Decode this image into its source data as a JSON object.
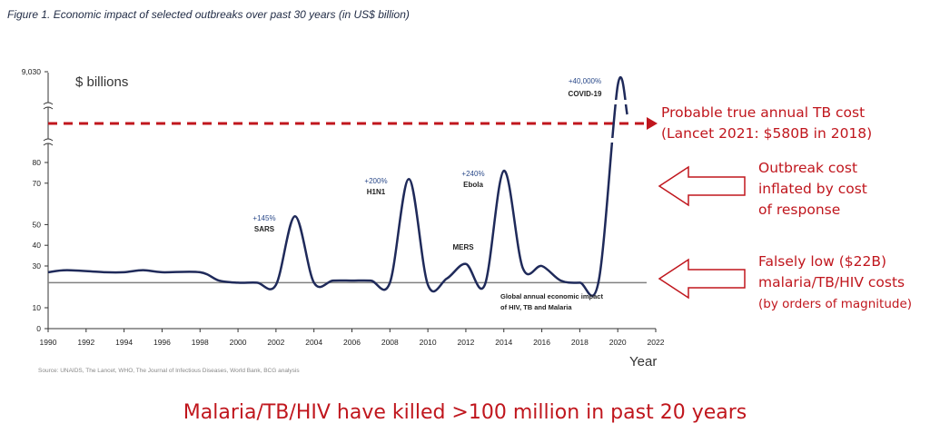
{
  "figure_title": "Figure 1. Economic impact of selected outbreaks over past 30 years (in US$ billion)",
  "footer": "Malaria/TB/HIV have killed >100 million in past 20 years",
  "chart_data": {
    "type": "line",
    "title": "Figure 1. Economic impact of selected outbreaks over past 30 years (in US$ billion)",
    "ylabel": "$ billions",
    "xlabel": "Year",
    "xlim": [
      1990,
      2022
    ],
    "x_ticks": [
      "1990",
      "1992",
      "1994",
      "1996",
      "1998",
      "2000",
      "2002",
      "2004",
      "2006",
      "2008",
      "2010",
      "2012",
      "2014",
      "2016",
      "2018",
      "2020",
      "2022"
    ],
    "y_ticks": [
      "0",
      "10",
      "30",
      "40",
      "50",
      "70",
      "80",
      "9,030"
    ],
    "y_axis_broken": true,
    "series": [
      {
        "x": [
          1990,
          1991,
          1993,
          1994,
          1995,
          1996,
          1998,
          1999,
          2000,
          2001,
          2002,
          2003,
          2004,
          2005,
          2006,
          2007,
          2008,
          2009,
          2010,
          2011,
          2012,
          2013,
          2014,
          2015,
          2016,
          2017,
          2018,
          2019,
          2020,
          2020.5
        ],
        "y": [
          27,
          28,
          27,
          27,
          28,
          27,
          27,
          23,
          22,
          22,
          21,
          54,
          22,
          23,
          23,
          23,
          22,
          72,
          21,
          24,
          31,
          21,
          76,
          29,
          30,
          23,
          22,
          23,
          9030,
          8000
        ]
      }
    ],
    "baseline": {
      "y": 22,
      "label": "Global annual economic impact of HIV, TB and Malaria"
    },
    "reference_line": {
      "label": "Probable true annual TB cost (Lancet 2021: $580B in 2018)",
      "style": "dashed",
      "color": "#c0161d"
    },
    "annotations": [
      {
        "x": 2003,
        "label": "SARS",
        "change": "+145%"
      },
      {
        "x": 2009,
        "label": "H1N1",
        "change": "+200%"
      },
      {
        "x": 2012,
        "label": "MERS",
        "change": ""
      },
      {
        "x": 2014,
        "label": "Ebola",
        "change": "+240%"
      },
      {
        "x": 2020,
        "label": "COVID-19",
        "change": "+40,000%"
      }
    ],
    "source": "Source: UNAIDS, The Lancet, WHO, The Journal of Infectious Diseases, World Bank, BCG analysis",
    "grid": false,
    "colors": {
      "line": "#1f2a5a",
      "baseline": "#808080",
      "callout": "#c0161d"
    }
  },
  "callouts": {
    "tb_cost_line1": "Probable true annual TB cost",
    "tb_cost_line2": "(Lancet 2021: $580B in 2018)",
    "outbreak_line1": "Outbreak cost",
    "outbreak_line2": "inflated by cost",
    "outbreak_line3": "of response",
    "low_line1": "Falsely low ($22B)",
    "low_line2": "malaria/TB/HIV costs",
    "low_line3": "(by orders of magnitude)"
  }
}
